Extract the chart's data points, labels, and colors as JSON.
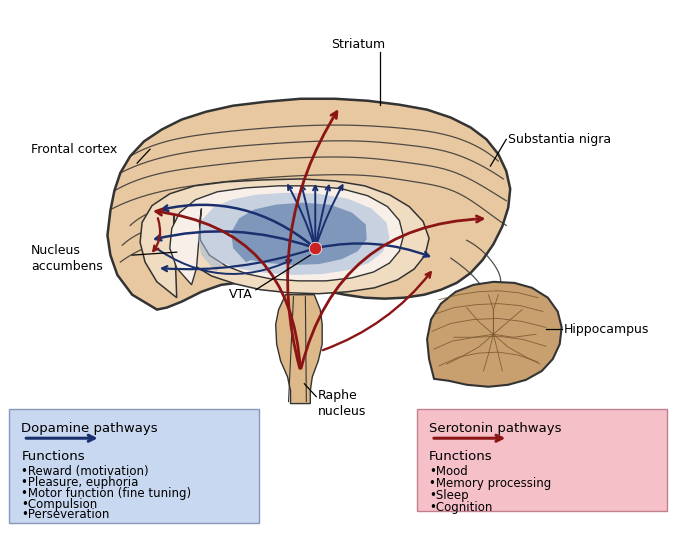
{
  "bg_color": "#ffffff",
  "brain_color": "#e8c8a0",
  "brain_outline": "#333333",
  "inner_color": "#f0dcc0",
  "white_matter_color": "#f8f0e8",
  "blue_region_color": "#a0b8d8",
  "blue_region_alpha": 0.55,
  "deep_blue_color": "#5878a8",
  "deep_blue_alpha": 0.65,
  "cerebellum_color": "#c8a070",
  "cerebellum_outline": "#333333",
  "stem_color": "#ddb888",
  "blue_path_color": "#1a2f6e",
  "red_path_color": "#8b1515",
  "vta_dot_color": "#cc2222",
  "dopamine_box": {
    "facecolor": "#c8d8f0",
    "edgecolor": "#8898b8",
    "title": "Dopamine pathways",
    "arrow_color": "#1a2f6e",
    "functions_label": "Functions",
    "items": [
      "•Reward (motivation)",
      "•Pleasure, euphoria",
      "•Motor function (fine tuning)",
      "•Compulsion",
      "•Perseveration"
    ]
  },
  "serotonin_box": {
    "facecolor": "#f5c0c8",
    "edgecolor": "#c08090",
    "title": "Serotonin pathways",
    "arrow_color": "#8b1515",
    "functions_label": "Functions",
    "items": [
      "•Mood",
      "•Memory processing",
      "•Sleep",
      "•Cognition"
    ]
  }
}
